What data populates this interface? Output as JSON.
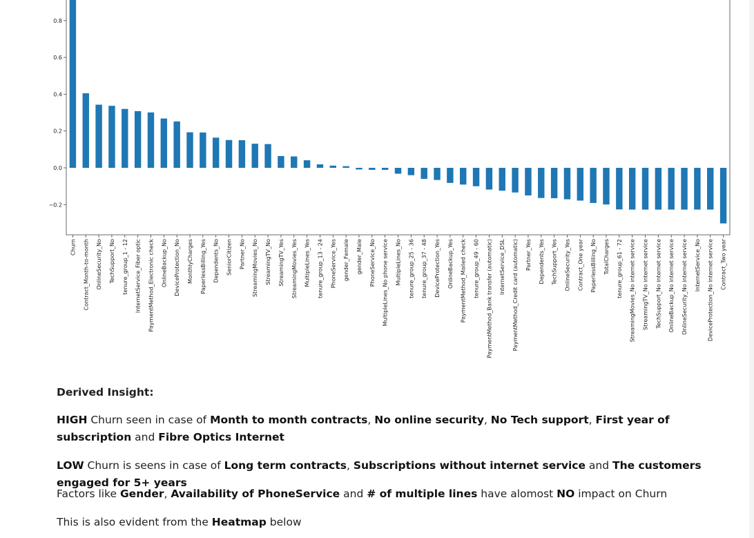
{
  "chart_data": {
    "type": "bar",
    "color": "#1f77b4",
    "ylim": [
      -0.36,
      1.0
    ],
    "yticks": [
      -0.2,
      0.0,
      0.2,
      0.4,
      0.6,
      0.8
    ],
    "ytick_labels": [
      "−0.2",
      "0.0",
      "0.2",
      "0.4",
      "0.6",
      "0.8"
    ],
    "categories": [
      "Churn",
      "Contract_Month-to-month",
      "OnlineSecurity_No",
      "TechSupport_No",
      "tenure_group_1 - 12",
      "InternetService_Fiber optic",
      "PaymentMethod_Electronic check",
      "OnlineBackup_No",
      "DeviceProtection_No",
      "MonthlyCharges",
      "PaperlessBilling_Yes",
      "Dependents_No",
      "SeniorCitizen",
      "Partner_No",
      "StreamingMovies_No",
      "StreamingTV_No",
      "StreamingTV_Yes",
      "StreamingMovies_Yes",
      "MultipleLines_Yes",
      "tenure_group_13 - 24",
      "PhoneService_Yes",
      "gender_Female",
      "gender_Male",
      "PhoneService_No",
      "MultipleLines_No phone service",
      "MultipleLines_No",
      "tenure_group_25 - 36",
      "tenure_group_37 - 48",
      "DeviceProtection_Yes",
      "OnlineBackup_Yes",
      "PaymentMethod_Mailed check",
      "tenure_group_49 - 60",
      "PaymentMethod_Bank transfer (automatic)",
      "InternetService_DSL",
      "PaymentMethod_Credit card (automatic)",
      "Partner_Yes",
      "Dependents_Yes",
      "TechSupport_Yes",
      "OnlineSecurity_Yes",
      "Contract_One year",
      "PaperlessBilling_No",
      "TotalCharges",
      "tenure_group_61 - 72",
      "StreamingMovies_No internet service",
      "StreamingTV_No internet service",
      "TechSupport_No internet service",
      "OnlineBackup_No internet service",
      "OnlineSecurity_No internet service",
      "InternetService_No",
      "DeviceProtection_No internet service",
      "Contract_Two year"
    ],
    "values": [
      1.0,
      0.405,
      0.343,
      0.337,
      0.32,
      0.308,
      0.301,
      0.268,
      0.252,
      0.193,
      0.192,
      0.164,
      0.151,
      0.15,
      0.131,
      0.129,
      0.064,
      0.062,
      0.041,
      0.019,
      0.012,
      0.009,
      -0.009,
      -0.011,
      -0.011,
      -0.032,
      -0.04,
      -0.06,
      -0.066,
      -0.082,
      -0.091,
      -0.1,
      -0.118,
      -0.124,
      -0.134,
      -0.15,
      -0.164,
      -0.165,
      -0.171,
      -0.178,
      -0.191,
      -0.199,
      -0.226,
      -0.227,
      -0.227,
      -0.227,
      -0.227,
      -0.227,
      -0.227,
      -0.227,
      -0.302
    ]
  },
  "insights": {
    "title": "Derived Insight:",
    "high": {
      "lead": "HIGH",
      "t1": " Churn seen in case of ",
      "f1": "Month to month contracts",
      "s1": ", ",
      "f2": "No online security",
      "s2": ", ",
      "f3": "No Tech support",
      "s3": ", ",
      "f4": "First year of subscription",
      "s4": " and ",
      "f5": "Fibre Optics Internet"
    },
    "low": {
      "lead": "LOW",
      "t1": " Churn is seens in case of ",
      "f1": "Long term contracts",
      "s1": ", ",
      "f2": "Subscriptions without internet service",
      "s2": " and ",
      "f3": "The customers engaged for 5+ years"
    },
    "factors": {
      "t1": "Factors like ",
      "f1": "Gender",
      "s1": ", ",
      "f2": "Availability of PhoneService",
      "s2": " and ",
      "f3": "# of multiple lines",
      "s3": " have alomost ",
      "f4": "NO",
      "s4": " impact on Churn"
    },
    "evident": {
      "t1": "This is also evident from the ",
      "f1": "Heatmap",
      "t2": " below"
    }
  }
}
